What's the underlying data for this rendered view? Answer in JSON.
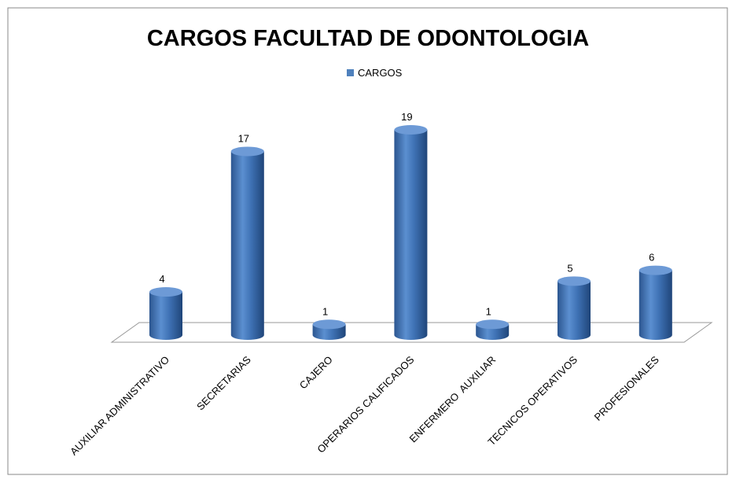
{
  "chart_data": {
    "type": "bar",
    "title": "CARGOS FACULTAD DE ODONTOLOGIA",
    "categories": [
      "AUXILIAR ADMINISTRATIVO",
      "SECRETARIAS",
      "CAJERO",
      "OPERARIOS CALIFICADOS",
      "ENFERMERO  AUXILIAR",
      "TECNICOS OPERATIVOS",
      "PROFESIONALES"
    ],
    "series": [
      {
        "name": "CARGOS",
        "color": "#4f81bd",
        "values": [
          4,
          17,
          1,
          19,
          1,
          5,
          6
        ]
      }
    ],
    "legend": "top"
  }
}
